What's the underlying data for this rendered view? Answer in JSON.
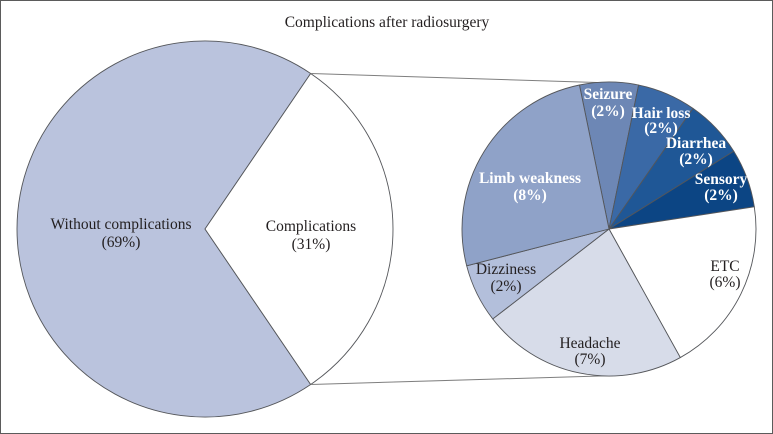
{
  "title": "Complications after radiosurgery",
  "colors": {
    "outline": "#54565a",
    "connector": "#7f7f7f",
    "figure_border": "#5b5b5b",
    "text_dark": "#231f20",
    "text_light": "#ffffff"
  },
  "chart_data": {
    "type": "pie",
    "variant": "pie-of-pie",
    "title": "Complications after radiosurgery",
    "legend": "none",
    "units": "%",
    "main_pie": {
      "slices": [
        {
          "label": "Without complications",
          "pct_label": "(69%)",
          "value": 69,
          "color": "#bac3dd",
          "text_color": "#231f20"
        },
        {
          "label": "Complications",
          "pct_label": "(31%)",
          "value": 31,
          "color": "#ffffff",
          "text_color": "#231f20"
        }
      ]
    },
    "secondary_pie": {
      "slices": [
        {
          "label": "Seizure",
          "pct_label": "(2%)",
          "value": 2,
          "color": "#6d87b5",
          "text_color": "#ffffff"
        },
        {
          "label": "Hair loss",
          "pct_label": "(2%)",
          "value": 2,
          "color": "#3a69a6",
          "text_color": "#ffffff"
        },
        {
          "label": "Diarrhea",
          "pct_label": "(2%)",
          "value": 2,
          "color": "#1f5796",
          "text_color": "#ffffff"
        },
        {
          "label": "Sensory",
          "pct_label": "(2%)",
          "value": 2,
          "color": "#0c4584",
          "text_color": "#ffffff"
        },
        {
          "label": "ETC",
          "pct_label": "(6%)",
          "value": 6,
          "color": "#ffffff",
          "text_color": "#231f20"
        },
        {
          "label": "Headache",
          "pct_label": "(7%)",
          "value": 7,
          "color": "#d7dce9",
          "text_color": "#231f20"
        },
        {
          "label": "Dizziness",
          "pct_label": "(2%)",
          "value": 2,
          "color": "#b3bfdb",
          "text_color": "#231f20"
        },
        {
          "label": "Limb weakness",
          "pct_label": "(8%)",
          "value": 8,
          "color": "#8fa2c8",
          "text_color": "#ffffff"
        }
      ]
    }
  }
}
